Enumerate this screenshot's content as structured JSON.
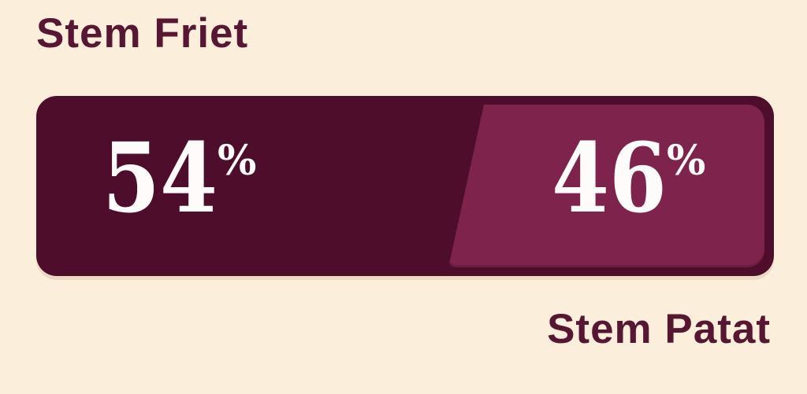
{
  "colors": {
    "background": "#FBEFDC",
    "bar-dark": "#4E0E2B",
    "bar-light": "#7E234C",
    "text-maroon": "#571733",
    "value-white": "#FDFCFA",
    "bar-shadow": "#EDD9C3"
  },
  "chart_data": {
    "type": "bar",
    "variant": "horizontal-100%-stacked-poll-result",
    "categories": [
      "Stem Friet",
      "Stem Patat"
    ],
    "values": [
      54,
      46
    ],
    "unit": "%",
    "series": [
      {
        "name": "Stem Friet",
        "value": 54,
        "color": "#4E0E2B",
        "label_position": "top-left"
      },
      {
        "name": "Stem Patat",
        "value": 46,
        "color": "#7E234C",
        "label_position": "bottom-right"
      }
    ],
    "labels": {
      "top_left": "Stem Friet",
      "bottom_right": "Stem Patat"
    },
    "axis": "none",
    "grid": false,
    "value_labels_inside_segments": true
  }
}
